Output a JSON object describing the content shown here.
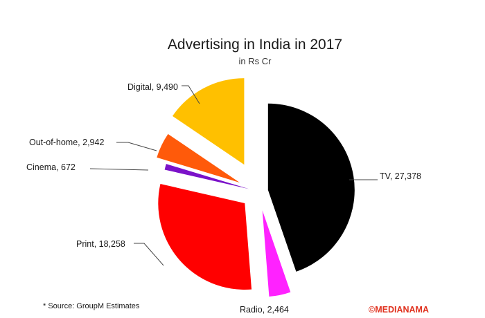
{
  "chart_data": {
    "type": "pie",
    "title": "Advertising in India in 2017",
    "subtitle": "in Rs Cr",
    "slices": [
      {
        "label": "TV",
        "value": 27378,
        "display": "TV, 27,378",
        "color": "#000000"
      },
      {
        "label": "Radio",
        "value": 2464,
        "display": "Radio, 2,464",
        "color": "#ff22ff"
      },
      {
        "label": "Print",
        "value": 18258,
        "display": "Print, 18,258",
        "color": "#ff0000"
      },
      {
        "label": "Cinema",
        "value": 672,
        "display": "Cinema, 672",
        "color": "#7b12c9"
      },
      {
        "label": "Out-of-home",
        "value": 2942,
        "display": "Out-of-home, 2,942",
        "color": "#ff5a0a"
      },
      {
        "label": "Digital",
        "value": 9490,
        "display": "Digital, 9,490",
        "color": "#ffc000"
      }
    ],
    "source_note": "* Source: GroupM Estimates",
    "brand": "©MEDIANAMA"
  }
}
